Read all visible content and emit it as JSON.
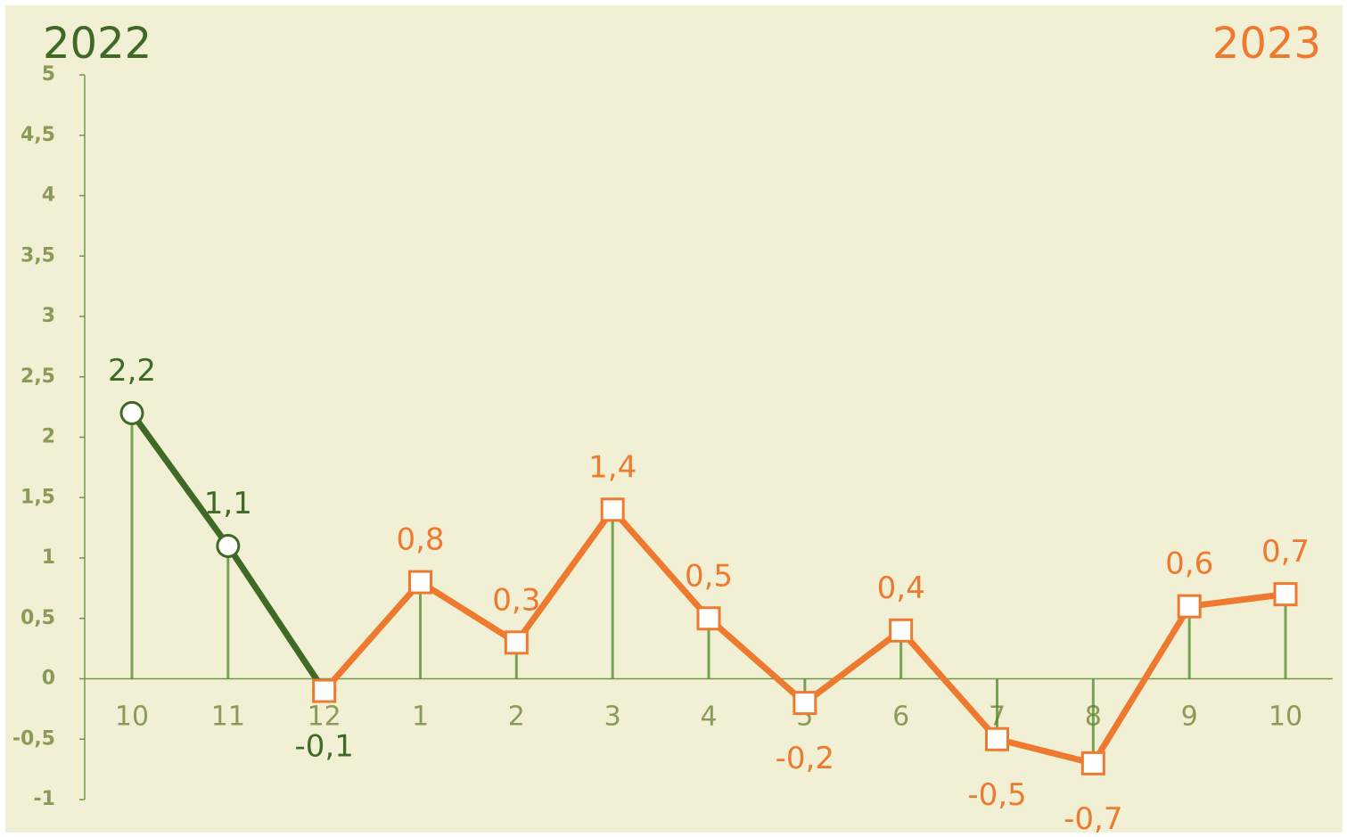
{
  "chart_data": {
    "type": "line",
    "categories": [
      "10",
      "11",
      "12",
      "1",
      "2",
      "3",
      "4",
      "5",
      "6",
      "7",
      "8",
      "9",
      "10"
    ],
    "series": [
      {
        "name": "2022",
        "color": "#3f6a25",
        "marker": "circle",
        "values": [
          2.2,
          1.1,
          -0.1,
          null,
          null,
          null,
          null,
          null,
          null,
          null,
          null,
          null,
          null
        ],
        "value_labels": [
          "2,2",
          "1,1",
          "-0,1",
          null,
          null,
          null,
          null,
          null,
          null,
          null,
          null,
          null,
          null
        ]
      },
      {
        "name": "2023",
        "color": "#ee7a30",
        "marker": "square",
        "values": [
          null,
          null,
          -0.1,
          0.8,
          0.3,
          1.4,
          0.5,
          -0.2,
          0.4,
          -0.5,
          -0.7,
          0.6,
          0.7
        ],
        "value_labels": [
          null,
          null,
          null,
          "0,8",
          "0,3",
          "1,4",
          "0,5",
          "-0,2",
          "0,4",
          "-0,5",
          "-0,7",
          "0,6",
          "0,7"
        ]
      }
    ],
    "ylim": [
      -1,
      5
    ],
    "yticks": [
      -1,
      {
        "value": -0.5,
        "label": "-0,5"
      },
      0,
      {
        "value": 0.5,
        "label": "0,5"
      },
      1,
      {
        "value": 1.5,
        "label": "1,5"
      },
      2,
      {
        "value": 2.5,
        "label": "2,5"
      },
      3,
      {
        "value": 3.5,
        "label": "3,5"
      },
      4,
      {
        "value": 4.5,
        "label": "4,5"
      },
      5
    ],
    "drop_line_color": "#4f8a2a",
    "grid": false
  }
}
